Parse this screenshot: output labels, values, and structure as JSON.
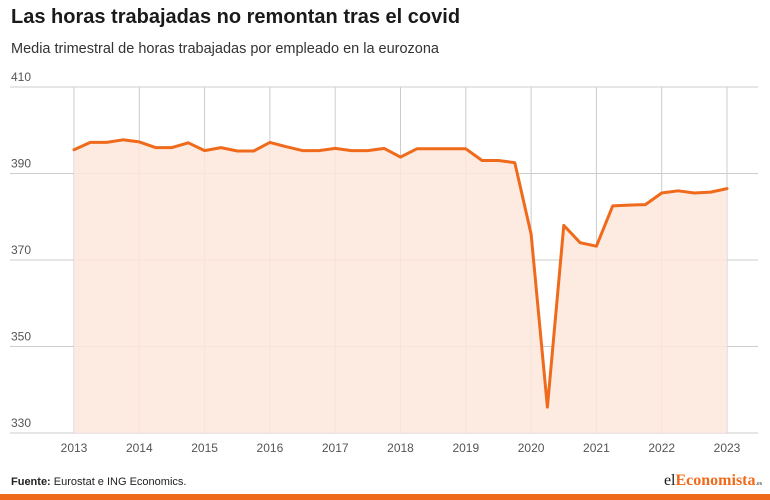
{
  "chart_data": {
    "type": "area",
    "title": "Las horas trabajadas no remontan tras el covid",
    "subtitle": "Media trimestral de horas trabajadas por empleado en la eurozona",
    "xlabel": "",
    "ylabel": "",
    "ylim": [
      330,
      410
    ],
    "yticks": [
      330,
      350,
      370,
      390,
      410
    ],
    "xticks": [
      "2013",
      "2014",
      "2015",
      "2016",
      "2017",
      "2018",
      "2019",
      "2020",
      "2021",
      "2022",
      "2023"
    ],
    "grid": true,
    "series": [
      {
        "x": [
          2013.0,
          2013.25,
          2013.5,
          2013.75,
          2014.0,
          2014.25,
          2014.5,
          2014.75,
          2015.0,
          2015.25,
          2015.5,
          2015.75,
          2016.0,
          2016.25,
          2016.5,
          2016.75,
          2017.0,
          2017.25,
          2017.5,
          2017.75,
          2018.0,
          2018.25,
          2018.5,
          2018.75,
          2019.0,
          2019.25,
          2019.5,
          2019.75,
          2020.0,
          2020.25,
          2020.5,
          2020.75,
          2021.0,
          2021.25,
          2021.5,
          2021.75,
          2022.0,
          2022.25,
          2022.5,
          2022.75,
          2023.0
        ],
        "y": [
          395.5,
          397.2,
          397.2,
          397.8,
          397.3,
          396.0,
          396.0,
          397.1,
          395.3,
          396.0,
          395.2,
          395.2,
          397.2,
          396.2,
          395.3,
          395.3,
          395.8,
          395.3,
          395.3,
          395.8,
          393.8,
          395.7,
          395.7,
          395.7,
          395.7,
          393.0,
          393.0,
          392.5,
          376.0,
          336.0,
          378.0,
          374.0,
          373.2,
          382.5,
          382.7,
          382.8,
          385.5,
          386.0,
          385.5,
          385.7,
          386.5
        ]
      }
    ],
    "colors": {
      "line": "#ef6a1b",
      "fill": "#fde6dc",
      "grid": "#cccccc"
    }
  },
  "footer": {
    "source_label": "Fuente:",
    "source_text": " Eurostat e ING Economics."
  },
  "logo": {
    "part1": "el",
    "part2": "Economista",
    "part3": ".es"
  }
}
